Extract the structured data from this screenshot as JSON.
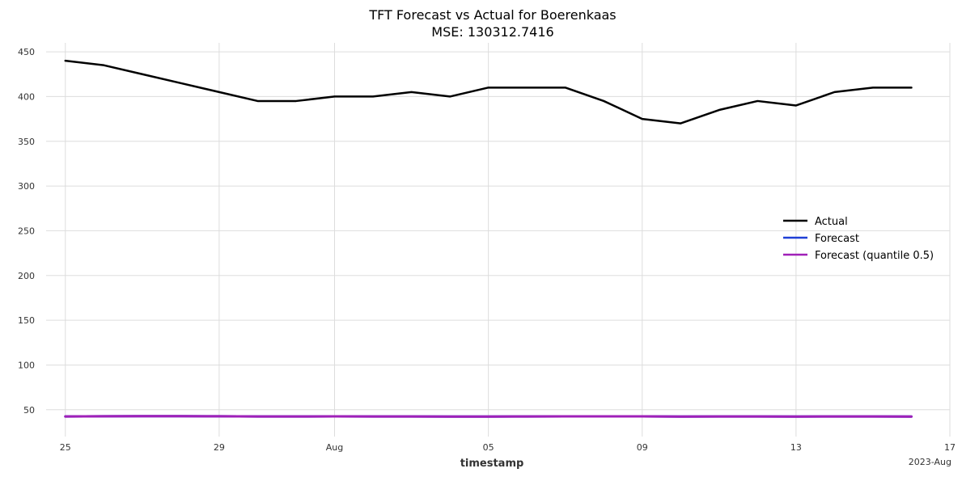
{
  "chart_data": {
    "type": "line",
    "title": "TFT Forecast vs Actual for Boerenkaas",
    "subtitle": "MSE: 130312.7416",
    "xlabel": "timestamp",
    "x_offset_label": "2023-Aug",
    "x_range": [
      "2023-07-24T12:00",
      "2023-08-17T00:00"
    ],
    "ylim": [
      20,
      460
    ],
    "grid": true,
    "legend_position": "center-right",
    "x_ticks": [
      {
        "date": "2023-07-25",
        "label": "25"
      },
      {
        "date": "2023-07-29",
        "label": "29"
      },
      {
        "date": "2023-08-01",
        "label": "Aug"
      },
      {
        "date": "2023-08-05",
        "label": "05"
      },
      {
        "date": "2023-08-09",
        "label": "09"
      },
      {
        "date": "2023-08-13",
        "label": "13"
      },
      {
        "date": "2023-08-17",
        "label": "17"
      }
    ],
    "y_ticks": [
      50,
      100,
      150,
      200,
      250,
      300,
      350,
      400,
      450
    ],
    "dates": [
      "2023-07-25",
      "2023-07-26",
      "2023-07-27",
      "2023-07-28",
      "2023-07-29",
      "2023-07-30",
      "2023-07-31",
      "2023-08-01",
      "2023-08-02",
      "2023-08-03",
      "2023-08-04",
      "2023-08-05",
      "2023-08-06",
      "2023-08-07",
      "2023-08-08",
      "2023-08-09",
      "2023-08-10",
      "2023-08-11",
      "2023-08-12",
      "2023-08-13",
      "2023-08-14",
      "2023-08-15",
      "2023-08-16"
    ],
    "series": [
      {
        "name": "Actual",
        "color": "#000000",
        "values": [
          440,
          435,
          425,
          415,
          405,
          395,
          395,
          400,
          400,
          405,
          400,
          410,
          410,
          410,
          395,
          375,
          370,
          385,
          395,
          390,
          405,
          410,
          410
        ]
      },
      {
        "name": "Forecast",
        "color": "#1f3fd6",
        "values": [
          42.5,
          42.7,
          42.8,
          42.8,
          42.7,
          42.5,
          42.5,
          42.6,
          42.5,
          42.5,
          42.4,
          42.4,
          42.5,
          42.6,
          42.6,
          42.6,
          42.4,
          42.5,
          42.5,
          42.4,
          42.5,
          42.5,
          42.4
        ]
      },
      {
        "name": "Forecast (quantile 0.5)",
        "color": "#a020b8",
        "values": [
          42.5,
          42.7,
          42.8,
          42.8,
          42.7,
          42.5,
          42.5,
          42.6,
          42.5,
          42.5,
          42.4,
          42.4,
          42.5,
          42.6,
          42.6,
          42.6,
          42.4,
          42.5,
          42.5,
          42.4,
          42.5,
          42.5,
          42.4
        ]
      }
    ]
  }
}
